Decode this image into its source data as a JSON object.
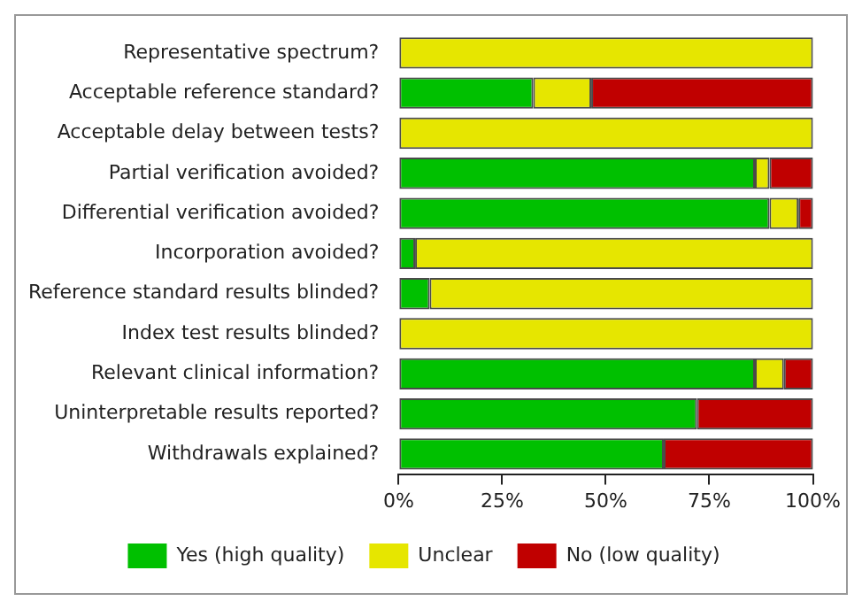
{
  "chart_data": {
    "type": "bar",
    "orientation": "horizontal",
    "stacked": true,
    "categories": [
      "Representative spectrum?",
      "Acceptable reference standard?",
      "Acceptable delay between tests?",
      "Partial verification avoided?",
      "Differential verification avoided?",
      "Incorporation avoided?",
      "Reference standard results blinded?",
      "Index test results blinded?",
      "Relevant clinical information?",
      "Uninterpretable results reported?",
      "Withdrawals explained?"
    ],
    "series": [
      {
        "name": "Yes (high quality)",
        "color": "#00c000",
        "values": [
          0,
          32.5,
          0,
          86,
          89.5,
          4,
          7.5,
          0,
          86,
          72,
          64
        ]
      },
      {
        "name": "Unclear",
        "color": "#e6e600",
        "values": [
          100,
          14,
          100,
          3.5,
          7,
          96,
          92.5,
          100,
          7,
          0,
          0
        ]
      },
      {
        "name": "No (low quality)",
        "color": "#c00000",
        "values": [
          0,
          53.5,
          0,
          10.5,
          3.5,
          0,
          0,
          0,
          7,
          28,
          36
        ]
      }
    ],
    "xlim": [
      0,
      100
    ],
    "xticks": [
      {
        "value": 0,
        "label": "0%"
      },
      {
        "value": 25,
        "label": "25%"
      },
      {
        "value": 50,
        "label": "50%"
      },
      {
        "value": 75,
        "label": "75%"
      },
      {
        "value": 100,
        "label": "100%"
      }
    ],
    "grid": false,
    "legend": "bottom"
  }
}
